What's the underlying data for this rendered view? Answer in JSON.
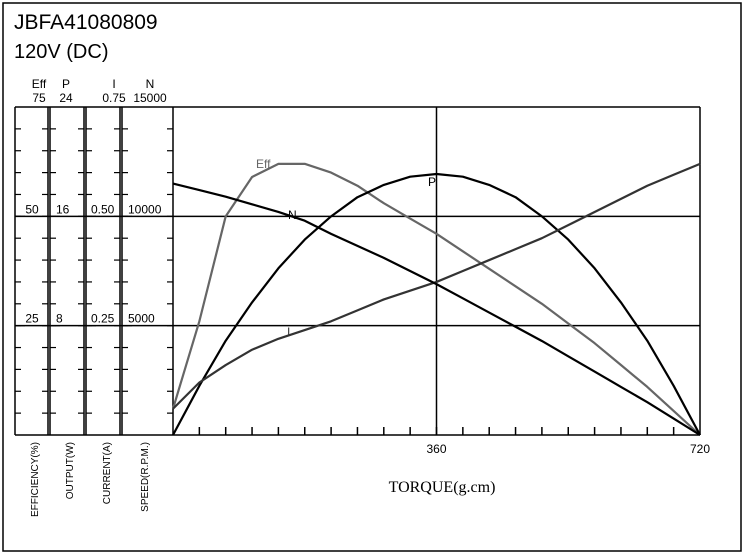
{
  "chart_data": {
    "type": "line",
    "title": "JBFA41080809",
    "subtitle": "120V (DC)",
    "x_label": "TORQUE(g.cm)",
    "xlim": [
      0,
      720
    ],
    "xticks": [
      360,
      720
    ],
    "x": [
      0,
      36,
      72,
      108,
      144,
      180,
      216,
      252,
      288,
      324,
      360,
      396,
      432,
      468,
      504,
      540,
      576,
      612,
      648,
      684,
      720
    ],
    "axes": [
      {
        "name": "Eff",
        "label": "EFFICIENCY(%)",
        "ylim": [
          0,
          75
        ],
        "yticks": [
          25,
          50,
          75
        ]
      },
      {
        "name": "P",
        "label": "OUTPUT(W)",
        "ylim": [
          0,
          24
        ],
        "yticks": [
          8,
          16,
          24
        ]
      },
      {
        "name": "I",
        "label": "CURRENT(A)",
        "ylim": [
          0,
          0.75
        ],
        "yticks": [
          0.25,
          {
            "value": 0.5,
            "label": "0.50"
          },
          0.75
        ]
      },
      {
        "name": "N",
        "label": "SPEED(R.P.M.)",
        "ylim": [
          0,
          15000
        ],
        "yticks": [
          5000,
          10000,
          15000
        ]
      }
    ],
    "grid": true,
    "series": [
      {
        "name": "Eff",
        "axis": 0,
        "color": "#666666",
        "values": [
          6,
          26,
          50,
          59,
          62,
          62,
          60,
          57,
          53,
          49.5,
          46,
          42,
          38,
          34,
          30,
          25.5,
          21,
          16,
          11,
          5.5,
          0
        ]
      },
      {
        "name": "P",
        "axis": 1,
        "color": "#000000",
        "values": [
          0,
          3.6,
          6.9,
          9.7,
          12.2,
          14.3,
          16.0,
          17.4,
          18.3,
          18.9,
          19.1,
          18.9,
          18.3,
          17.4,
          16.0,
          14.3,
          12.2,
          9.7,
          6.9,
          3.6,
          0
        ]
      },
      {
        "name": "I",
        "axis": 2,
        "color": "#333333",
        "values": [
          0.06,
          0.12,
          0.16,
          0.195,
          0.22,
          0.24,
          0.26,
          0.285,
          0.31,
          0.33,
          0.35,
          0.375,
          0.4,
          0.425,
          0.45,
          0.48,
          0.51,
          0.54,
          0.57,
          0.595,
          0.62
        ]
      },
      {
        "name": "N",
        "axis": 3,
        "color": "#000000",
        "values": [
          11500,
          11200,
          10900,
          10550,
          10200,
          9800,
          9200,
          8650,
          8100,
          7500,
          6900,
          6250,
          5600,
          4950,
          4300,
          3600,
          2900,
          2200,
          1500,
          750,
          0
        ]
      }
    ]
  }
}
